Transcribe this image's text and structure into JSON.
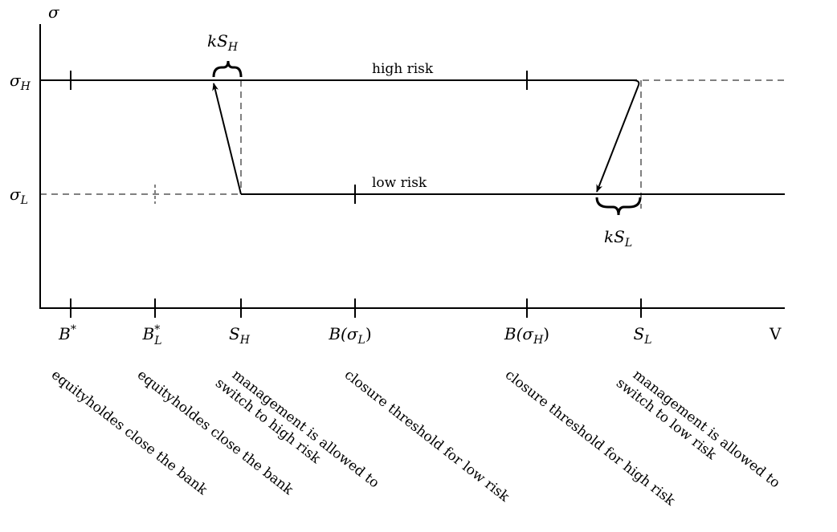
{
  "axes": {
    "y_label": "σ",
    "x_label": "V"
  },
  "levels": {
    "high": {
      "symbol": "σ",
      "sub": "H"
    },
    "low": {
      "symbol": "σ",
      "sub": "L"
    }
  },
  "line_labels": {
    "high": "high risk",
    "low": "low risk"
  },
  "braces": {
    "high": {
      "k": "k",
      "symbol": "S",
      "sub": "H"
    },
    "low": {
      "k": "k",
      "symbol": "S",
      "sub": "L"
    }
  },
  "ticks": [
    {
      "id": "b-star",
      "main": "B",
      "sub": "",
      "sup": "*",
      "tail": ""
    },
    {
      "id": "b-l-star",
      "main": "B",
      "sub": "L",
      "sup": "*",
      "tail": ""
    },
    {
      "id": "s-h",
      "main": "S",
      "sub": "H",
      "sup": "",
      "tail": ""
    },
    {
      "id": "b-sigma-l",
      "main": "B(σ",
      "sub": "L",
      "sup": "",
      "tail": ")"
    },
    {
      "id": "b-sigma-h",
      "main": "B(σ",
      "sub": "H",
      "sup": "",
      "tail": ")"
    },
    {
      "id": "s-l",
      "main": "S",
      "sub": "L",
      "sup": "",
      "tail": ""
    }
  ],
  "notes": [
    [
      "equityholdes close the bank"
    ],
    [
      "equityholdes close the bank"
    ],
    [
      "management is allowed to",
      "switch to high risk"
    ],
    [
      "closure threshold for low risk"
    ],
    [
      "closure threshold for high risk"
    ],
    [
      "management is allowed to",
      "switch to low risk"
    ]
  ]
}
